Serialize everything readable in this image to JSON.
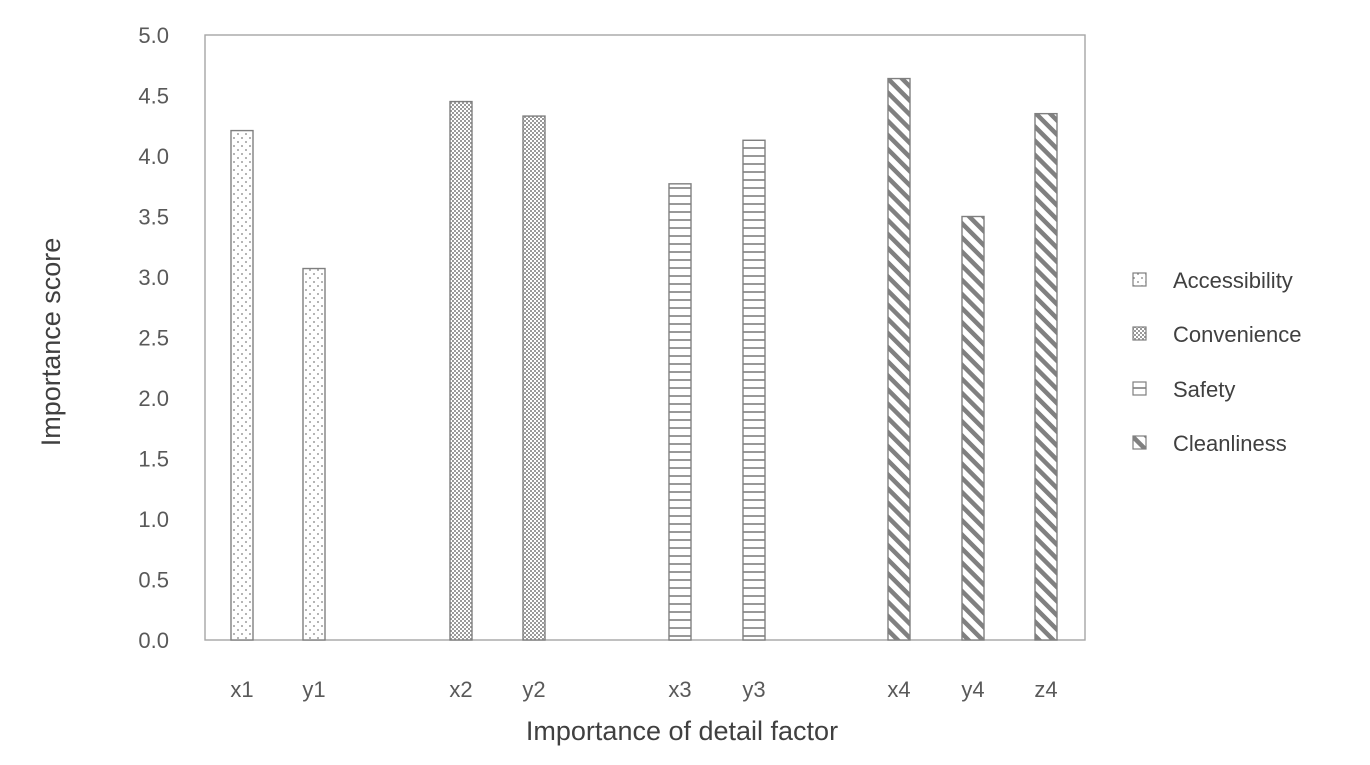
{
  "chart_data": {
    "type": "bar",
    "title": "",
    "xlabel": "Importance of detail factor",
    "ylabel": "Importance score",
    "ylim": [
      0,
      5
    ],
    "ytick_step": 0.5,
    "yticks": [
      "0.0",
      "0.5",
      "1.0",
      "1.5",
      "2.0",
      "2.5",
      "3.0",
      "3.5",
      "4.0",
      "4.5",
      "5.0"
    ],
    "grid": false,
    "legend_position": "right",
    "categories": [
      "x1",
      "y1",
      "x2",
      "y2",
      "x3",
      "y3",
      "x4",
      "y4",
      "z4"
    ],
    "groups": [
      {
        "name": "Accessibility",
        "pattern": "dots",
        "categories": [
          "x1",
          "y1"
        ],
        "values": [
          4.21,
          3.07
        ]
      },
      {
        "name": "Convenience",
        "pattern": "dense-dots",
        "categories": [
          "x2",
          "y2"
        ],
        "values": [
          4.45,
          4.33
        ]
      },
      {
        "name": "Safety",
        "pattern": "horizontal-lines",
        "categories": [
          "x3",
          "y3"
        ],
        "values": [
          3.77,
          4.13
        ]
      },
      {
        "name": "Cleanliness",
        "pattern": "diagonal-lines",
        "categories": [
          "x4",
          "y4",
          "z4"
        ],
        "values": [
          4.64,
          3.5,
          4.35
        ]
      }
    ],
    "colors": {
      "bar_stroke": "#7f7f7f",
      "axis_text": "#595959",
      "frame": "#a6a6a6"
    }
  }
}
